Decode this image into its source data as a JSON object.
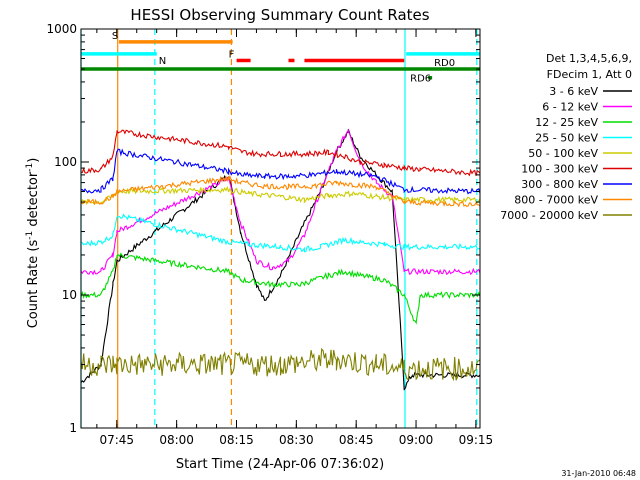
{
  "chart_data": {
    "type": "line",
    "title": "HESSI Observing Summary Count Rates",
    "xlabel": "Start Time (24-Apr-06 07:36:02)",
    "ylabel_main": "Count Rate (s",
    "ylabel_sup": "-1",
    "ylabel_tail": " detector",
    "ylabel_sup2": "-1",
    "ylabel_close": ")",
    "yscale": "log",
    "ylim": [
      1,
      1000
    ],
    "xlim_minutes": [
      0,
      100
    ],
    "x_ticks": [
      {
        "label": "07:45",
        "minute": 8.97
      },
      {
        "label": "08:00",
        "minute": 23.97
      },
      {
        "label": "08:15",
        "minute": 38.97
      },
      {
        "label": "08:30",
        "minute": 53.97
      },
      {
        "label": "08:45",
        "minute": 68.97
      },
      {
        "label": "09:00",
        "minute": 83.97
      },
      {
        "label": "09:15",
        "minute": 98.97
      }
    ],
    "y_ticks": [
      {
        "label": "1",
        "value": 1
      },
      {
        "label": "10",
        "value": 10
      },
      {
        "label": "100",
        "value": 100
      },
      {
        "label": "1000",
        "value": 1000
      }
    ],
    "legend": {
      "header1": "Det 1,3,4,5,6,9,",
      "header2": "FDecim 1, Att 0",
      "placement": "right"
    },
    "series": [
      {
        "name": "3 - 6 keV",
        "color": "#000000",
        "points": [
          [
            0,
            2.2
          ],
          [
            5,
            3
          ],
          [
            8,
            12
          ],
          [
            9,
            18
          ],
          [
            37,
            80
          ],
          [
            40,
            30
          ],
          [
            44,
            12
          ],
          [
            46,
            9
          ],
          [
            50,
            14
          ],
          [
            55,
            30
          ],
          [
            60,
            60
          ],
          [
            64,
            120
          ],
          [
            67,
            170
          ],
          [
            70,
            110
          ],
          [
            74,
            80
          ],
          [
            78,
            60
          ],
          [
            81,
            2
          ],
          [
            83,
            2.5
          ],
          [
            100,
            2.5
          ]
        ]
      },
      {
        "name": "6 - 12 keV",
        "color": "#ff00ff",
        "points": [
          [
            0,
            15
          ],
          [
            5,
            15
          ],
          [
            8,
            20
          ],
          [
            9,
            30
          ],
          [
            37,
            75
          ],
          [
            40,
            35
          ],
          [
            44,
            18
          ],
          [
            48,
            16
          ],
          [
            52,
            18
          ],
          [
            56,
            28
          ],
          [
            60,
            60
          ],
          [
            64,
            120
          ],
          [
            67,
            175
          ],
          [
            70,
            100
          ],
          [
            74,
            70
          ],
          [
            78,
            55
          ],
          [
            81,
            15
          ],
          [
            100,
            15
          ]
        ]
      },
      {
        "name": "12 - 25 keV",
        "color": "#00dd00",
        "points": [
          [
            0,
            10
          ],
          [
            5,
            10
          ],
          [
            8,
            15
          ],
          [
            9,
            20
          ],
          [
            37,
            15
          ],
          [
            40,
            13
          ],
          [
            48,
            12
          ],
          [
            55,
            12
          ],
          [
            62,
            14
          ],
          [
            66,
            15
          ],
          [
            70,
            14
          ],
          [
            76,
            13
          ],
          [
            81,
            10
          ],
          [
            84,
            6
          ],
          [
            85,
            10
          ],
          [
            100,
            10
          ]
        ]
      },
      {
        "name": "25 - 50 keV",
        "color": "#00ffff",
        "points": [
          [
            0,
            24
          ],
          [
            5,
            25
          ],
          [
            8,
            28
          ],
          [
            9,
            40
          ],
          [
            37,
            25
          ],
          [
            42,
            24
          ],
          [
            50,
            23
          ],
          [
            56,
            22
          ],
          [
            60,
            23
          ],
          [
            66,
            26
          ],
          [
            70,
            25
          ],
          [
            76,
            24
          ],
          [
            81,
            23
          ],
          [
            100,
            23
          ]
        ]
      },
      {
        "name": "50 - 100 keV",
        "color": "#cccc00",
        "points": [
          [
            0,
            50
          ],
          [
            5,
            50
          ],
          [
            8,
            55
          ],
          [
            9,
            60
          ],
          [
            37,
            62
          ],
          [
            42,
            58
          ],
          [
            50,
            55
          ],
          [
            56,
            52
          ],
          [
            62,
            56
          ],
          [
            68,
            58
          ],
          [
            74,
            55
          ],
          [
            81,
            52
          ],
          [
            100,
            52
          ]
        ]
      },
      {
        "name": "100 - 300 keV",
        "color": "#dd0000",
        "points": [
          [
            0,
            85
          ],
          [
            5,
            88
          ],
          [
            8,
            110
          ],
          [
            9,
            170
          ],
          [
            37,
            130
          ],
          [
            40,
            120
          ],
          [
            44,
            115
          ],
          [
            50,
            115
          ],
          [
            56,
            115
          ],
          [
            62,
            118
          ],
          [
            66,
            110
          ],
          [
            70,
            100
          ],
          [
            76,
            95
          ],
          [
            81,
            90
          ],
          [
            85,
            88
          ],
          [
            100,
            82
          ]
        ]
      },
      {
        "name": "300 - 800 keV",
        "color": "#0000ff",
        "points": [
          [
            0,
            60
          ],
          [
            5,
            62
          ],
          [
            8,
            75
          ],
          [
            9,
            120
          ],
          [
            37,
            85
          ],
          [
            40,
            80
          ],
          [
            46,
            78
          ],
          [
            52,
            78
          ],
          [
            58,
            80
          ],
          [
            64,
            85
          ],
          [
            68,
            82
          ],
          [
            74,
            78
          ],
          [
            81,
            62
          ],
          [
            100,
            60
          ]
        ]
      },
      {
        "name": "800 - 7000 keV",
        "color": "#ff8800",
        "points": [
          [
            0,
            50
          ],
          [
            5,
            50
          ],
          [
            8,
            55
          ],
          [
            9,
            60
          ],
          [
            37,
            75
          ],
          [
            40,
            70
          ],
          [
            46,
            66
          ],
          [
            52,
            65
          ],
          [
            58,
            66
          ],
          [
            64,
            70
          ],
          [
            68,
            68
          ],
          [
            74,
            65
          ],
          [
            81,
            50
          ],
          [
            100,
            48
          ]
        ]
      },
      {
        "name": "7000 - 20000 keV",
        "color": "#808000",
        "points": [
          [
            0,
            3
          ],
          [
            5,
            3
          ],
          [
            8,
            3
          ],
          [
            9,
            3
          ],
          [
            37,
            3
          ],
          [
            50,
            3
          ],
          [
            64,
            3.3
          ],
          [
            74,
            3
          ],
          [
            81,
            2.8
          ],
          [
            100,
            2.8
          ]
        ]
      }
    ],
    "flags": [
      {
        "label": "S",
        "color": "#ff8800",
        "value": 800,
        "segments": [
          [
            9.5,
            38
          ]
        ]
      },
      {
        "label": "N",
        "color": "#00ffff",
        "value": 650,
        "segments": [
          [
            0,
            19
          ],
          [
            81.5,
            100
          ]
        ]
      },
      {
        "label": "F",
        "color": "#ff0000",
        "value": 580,
        "segments": [
          [
            39,
            42.5
          ],
          [
            52,
            53.5
          ],
          [
            56,
            81
          ]
        ]
      },
      {
        "label": "RD0",
        "color": "#008800",
        "value": 500,
        "segments": [
          [
            0,
            100
          ]
        ]
      },
      {
        "label": "RD6",
        "color": "#008800",
        "value": 430,
        "segments": [
          [
            87,
            88
          ]
        ]
      }
    ],
    "vlines": [
      {
        "minute": 9.2,
        "color": "#ff8800",
        "style": "solid"
      },
      {
        "minute": 18.5,
        "color": "#00ffff",
        "style": "dashed"
      },
      {
        "minute": 37.7,
        "color": "#ff8800",
        "style": "dashed"
      },
      {
        "minute": 81.2,
        "color": "#00ffff",
        "style": "solid"
      },
      {
        "minute": 99.2,
        "color": "#00ffff",
        "style": "dashed"
      },
      {
        "minute": 0.0,
        "color": "#00ffff",
        "style": "solid"
      }
    ]
  },
  "footer_timestamp": "31-Jan-2010 06:48"
}
